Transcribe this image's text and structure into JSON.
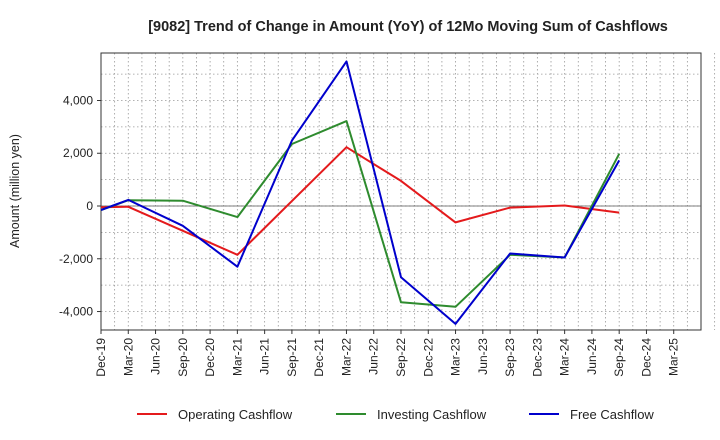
{
  "chart_data": {
    "type": "line",
    "title": "[9082]  Trend of Change in Amount (YoY) of 12Mo Moving Sum of Cashflows",
    "xlabel": "",
    "ylabel": "Amount (million yen)",
    "categories": [
      "Dec-19",
      "Mar-20",
      "Jun-20",
      "Sep-20",
      "Dec-20",
      "Mar-21",
      "Jun-21",
      "Sep-21",
      "Dec-21",
      "Mar-22",
      "Jun-22",
      "Sep-22",
      "Dec-22",
      "Mar-23",
      "Jun-23",
      "Sep-23",
      "Dec-23",
      "Mar-24",
      "Jun-24",
      "Sep-24",
      "Dec-24",
      "Mar-25"
    ],
    "ylim": [
      -4700,
      5800
    ],
    "yticks": [
      -4000,
      -2000,
      0,
      2000,
      4000
    ],
    "ytick_labels": [
      "-4,000",
      "-2,000",
      "0",
      "2,000",
      "4,000"
    ],
    "grid": true,
    "legend_position": "bottom",
    "series": [
      {
        "name": "Operating Cashflow",
        "color": "#e41a1c",
        "values": [
          -50,
          -30,
          null,
          null,
          null,
          -1850,
          null,
          null,
          null,
          2230,
          null,
          950,
          null,
          -620,
          null,
          -60,
          null,
          20,
          null,
          -250,
          null,
          null
        ]
      },
      {
        "name": "Investing Cashflow",
        "color": "#2e8b2e",
        "values": [
          -150,
          220,
          null,
          200,
          null,
          -420,
          null,
          2350,
          null,
          3220,
          null,
          -3650,
          null,
          -3820,
          null,
          -1850,
          null,
          -1950,
          null,
          1980,
          null,
          null
        ]
      },
      {
        "name": "Free Cashflow",
        "color": "#0000cc",
        "values": [
          -150,
          230,
          null,
          -750,
          null,
          -2300,
          null,
          2480,
          null,
          5480,
          null,
          -2700,
          null,
          -4470,
          null,
          -1800,
          null,
          -1950,
          null,
          1730,
          null,
          null
        ]
      }
    ]
  }
}
